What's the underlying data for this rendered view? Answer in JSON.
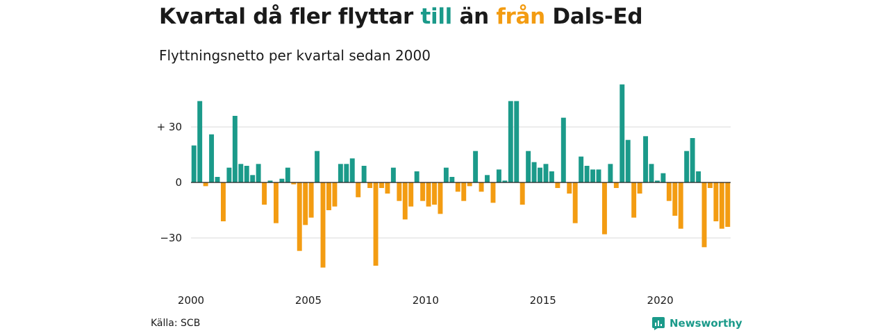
{
  "colors": {
    "positive": "#1b9a8a",
    "negative": "#f39c12",
    "grid": "#d9d9d9",
    "zero_line": "#222222",
    "text": "#1a1a1a"
  },
  "header": {
    "title_part1": "Kvartal då fler flyttar ",
    "title_till": "till",
    "title_part2": " än ",
    "title_fran": "från",
    "title_part3": " Dals-Ed",
    "subtitle": "Flyttningsnetto per kvartal sedan 2000"
  },
  "footer": {
    "source": "Källa: SCB",
    "brand": "Newsworthy",
    "brand_icon": "newsworthy-logo-icon"
  },
  "chart_data": {
    "type": "bar",
    "title": "Kvartal då fler flyttar till än från Dals-Ed",
    "subtitle": "Flyttningsnetto per kvartal sedan 2000",
    "xlabel": "",
    "ylabel": "",
    "ylim": [
      -48,
      53
    ],
    "yticks": [
      {
        "value": 30,
        "label": "+ 30"
      },
      {
        "value": 0,
        "label": "0"
      },
      {
        "value": -30,
        "label": "−30"
      }
    ],
    "xticks": [
      {
        "value": 2000,
        "label": "2000"
      },
      {
        "value": 2005,
        "label": "2005"
      },
      {
        "value": 2010,
        "label": "2010"
      },
      {
        "value": 2015,
        "label": "2015"
      },
      {
        "value": 2020,
        "label": "2020"
      }
    ],
    "grid": true,
    "start": "2000 Q1",
    "values": [
      20,
      44,
      -2,
      26,
      3,
      -21,
      8,
      36,
      10,
      9,
      4,
      10,
      -12,
      1,
      -22,
      2,
      8,
      -1,
      -37,
      -23,
      -19,
      17,
      -46,
      -15,
      -13,
      10,
      10,
      13,
      -8,
      9,
      -3,
      -45,
      -3,
      -6,
      8,
      -10,
      -20,
      -13,
      6,
      -10,
      -13,
      -12,
      -17,
      8,
      3,
      -5,
      -10,
      -2,
      17,
      -5,
      4,
      -11,
      7,
      1,
      44,
      44,
      -12,
      17,
      11,
      8,
      10,
      6,
      -3,
      35,
      -6,
      -22,
      14,
      9,
      7,
      7,
      -28,
      10,
      -3,
      53,
      23,
      -19,
      -6,
      25,
      10,
      1,
      5,
      -10,
      -18,
      -25,
      17,
      24,
      6,
      -35,
      -3,
      -21,
      -25,
      -24
    ]
  }
}
